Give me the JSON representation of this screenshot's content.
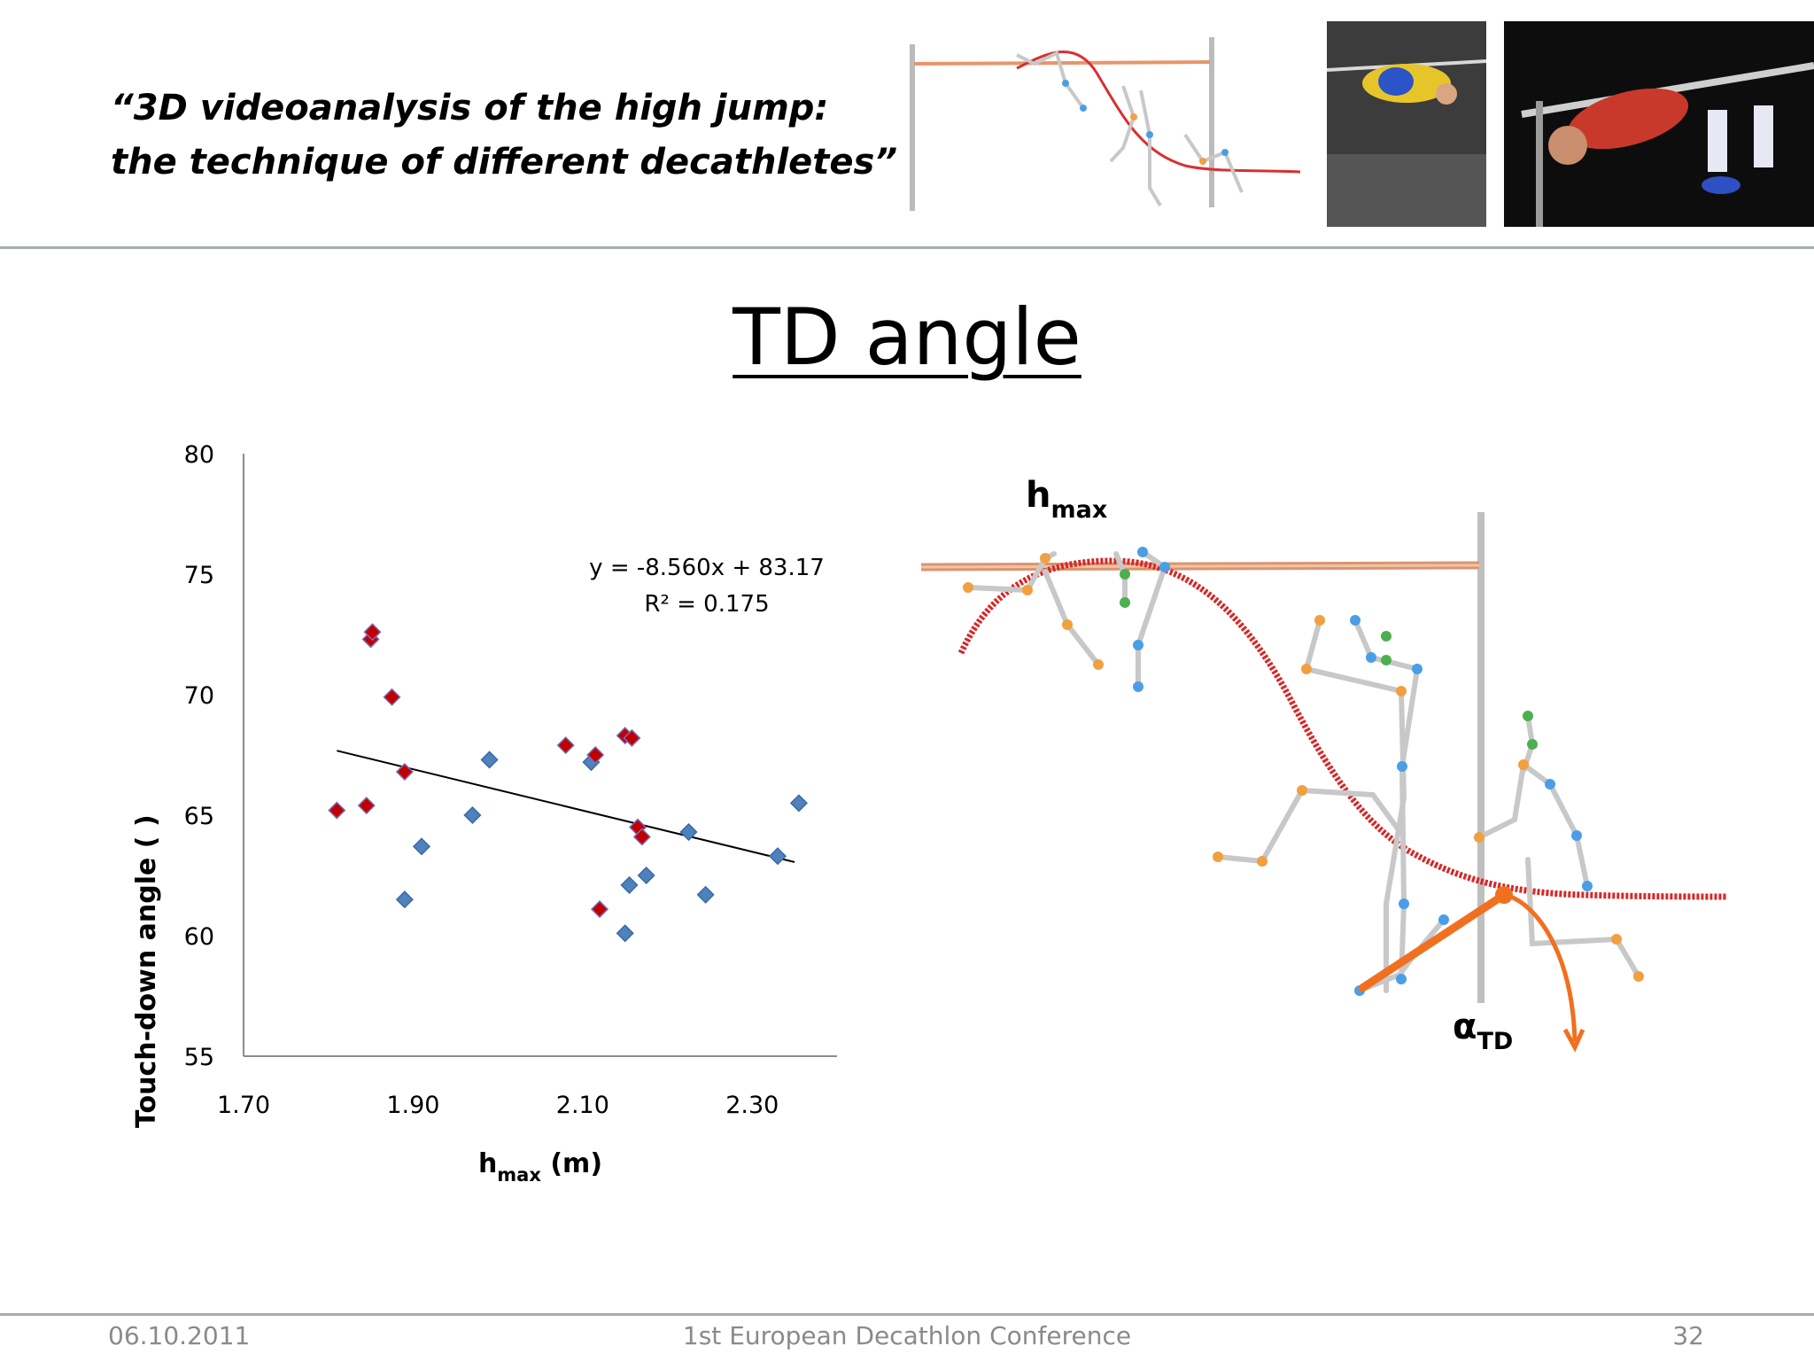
{
  "header": {
    "title_line1": "“3D videoanalysis of the high jump:",
    "title_line2": "the technique of different decathletes”"
  },
  "slide": {
    "title": "TD angle"
  },
  "chart_data": {
    "type": "scatter",
    "xlabel_main": "h",
    "xlabel_sub": "max",
    "xlabel_unit": " (m)",
    "ylabel": "Touch-down angle ( )",
    "xlim": [
      1.7,
      2.4
    ],
    "ylim": [
      55,
      80
    ],
    "x_ticks": [
      "1.70",
      "1.90",
      "2.10",
      "2.30"
    ],
    "y_ticks": [
      "55",
      "60",
      "65",
      "70",
      "75",
      "80"
    ],
    "grid": false,
    "series": [
      {
        "color": "#4f81bd",
        "points": [
          [
            1.89,
            61.5
          ],
          [
            1.91,
            63.7
          ],
          [
            1.97,
            65.0
          ],
          [
            1.99,
            67.3
          ],
          [
            2.11,
            67.2
          ],
          [
            2.15,
            60.1
          ],
          [
            2.155,
            62.1
          ],
          [
            2.175,
            62.5
          ],
          [
            2.225,
            64.3
          ],
          [
            2.245,
            61.7
          ],
          [
            2.33,
            63.3
          ],
          [
            2.355,
            65.5
          ]
        ]
      },
      {
        "color": "#c00000",
        "points": [
          [
            1.81,
            65.2
          ],
          [
            1.845,
            65.4
          ],
          [
            1.85,
            72.3
          ],
          [
            1.852,
            72.6
          ],
          [
            1.875,
            69.9
          ],
          [
            1.89,
            66.8
          ],
          [
            2.08,
            67.9
          ],
          [
            2.115,
            67.5
          ],
          [
            2.12,
            61.1
          ],
          [
            2.15,
            68.3
          ],
          [
            2.158,
            68.2
          ],
          [
            2.165,
            64.5
          ],
          [
            2.17,
            64.1
          ]
        ]
      }
    ],
    "trendline": {
      "equation": "y = -8.560x + 83.17",
      "r2": "R² = 0.175",
      "slope": -8.56,
      "intercept": 83.17,
      "x_range": [
        1.81,
        2.35
      ]
    }
  },
  "diagram": {
    "hmax_main": "h",
    "hmax_sub": "max",
    "alpha_main": "α",
    "alpha_sub": "TD"
  },
  "footer": {
    "date": "06.10.2011",
    "conference": "1st European Decathlon Conference",
    "page": "32"
  }
}
